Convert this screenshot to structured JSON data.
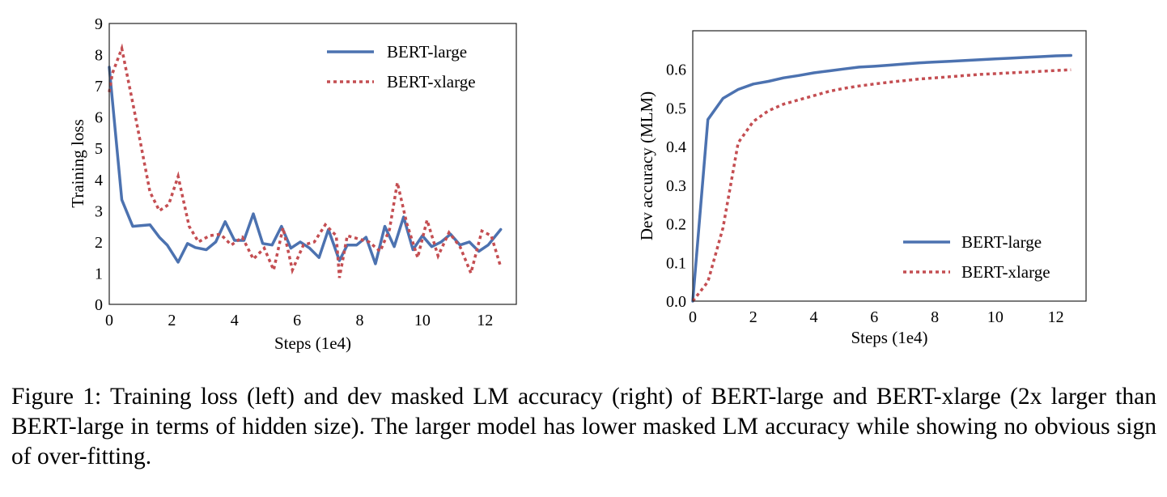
{
  "chart_data": [
    {
      "type": "line",
      "xlabel": "Steps (1e4)",
      "ylabel": "Training loss",
      "xlim": [
        0,
        13
      ],
      "ylim": [
        0,
        9
      ],
      "xticks": [
        0,
        2,
        4,
        6,
        8,
        10,
        12
      ],
      "xtick_labels": [
        "0",
        "2",
        "4",
        "6",
        "8",
        "10",
        "12"
      ],
      "yticks": [
        0,
        1,
        2,
        3,
        4,
        5,
        6,
        7,
        8,
        9
      ],
      "ytick_labels": [
        "0",
        "1",
        "2",
        "3",
        "4",
        "5",
        "6",
        "7",
        "8",
        "9"
      ],
      "grid": false,
      "legend": "top-right",
      "series": [
        {
          "name": "BERT-large",
          "color": "#4c72b0",
          "style": "solid",
          "x": [
            0,
            0.4,
            0.75,
            1.0,
            1.3,
            1.6,
            1.85,
            2.2,
            2.5,
            2.75,
            3.1,
            3.4,
            3.7,
            4.0,
            4.3,
            4.6,
            4.9,
            5.2,
            5.5,
            5.8,
            6.1,
            6.4,
            6.7,
            7.0,
            7.35,
            7.6,
            7.9,
            8.2,
            8.5,
            8.8,
            9.1,
            9.4,
            9.7,
            10.0,
            10.3,
            10.6,
            10.9,
            11.2,
            11.5,
            11.8,
            12.1,
            12.5
          ],
          "y": [
            7.6,
            3.35,
            2.5,
            2.52,
            2.55,
            2.15,
            1.9,
            1.35,
            1.95,
            1.82,
            1.75,
            2.0,
            2.65,
            2.05,
            2.05,
            2.9,
            1.95,
            1.9,
            2.5,
            1.8,
            2.0,
            1.8,
            1.5,
            2.4,
            1.4,
            1.9,
            1.9,
            2.15,
            1.3,
            2.5,
            1.85,
            2.8,
            1.75,
            2.2,
            1.85,
            2.0,
            2.25,
            1.9,
            2.0,
            1.7,
            1.9,
            2.4
          ]
        },
        {
          "name": "BERT-xlarge",
          "color": "#c44e52",
          "style": "dotted",
          "x": [
            0,
            0.1,
            0.4,
            0.8,
            1.3,
            1.6,
            1.9,
            2.2,
            2.55,
            2.85,
            3.2,
            3.55,
            3.9,
            4.25,
            4.6,
            4.95,
            5.25,
            5.55,
            5.85,
            6.2,
            6.55,
            6.9,
            7.25,
            7.35,
            7.6,
            7.95,
            8.3,
            8.65,
            8.95,
            9.2,
            9.5,
            9.85,
            10.15,
            10.5,
            10.85,
            11.2,
            11.55,
            11.9,
            12.2,
            12.5
          ],
          "y": [
            6.8,
            7.4,
            8.2,
            6.2,
            3.6,
            3.0,
            3.2,
            4.1,
            2.5,
            2.0,
            2.2,
            2.25,
            1.9,
            2.15,
            1.45,
            1.8,
            1.1,
            2.45,
            1.1,
            1.9,
            2.0,
            2.55,
            2.2,
            0.85,
            2.2,
            2.1,
            2.0,
            1.7,
            2.4,
            3.9,
            2.6,
            1.5,
            2.7,
            1.55,
            2.3,
            1.85,
            1.0,
            2.35,
            2.2,
            1.2
          ]
        }
      ]
    },
    {
      "type": "line",
      "xlabel": "Steps (1e4)",
      "ylabel": "Dev accuracy (MLM)",
      "xlim": [
        0,
        13
      ],
      "ylim": [
        0,
        0.7
      ],
      "xticks": [
        0,
        2,
        4,
        6,
        8,
        10,
        12
      ],
      "xtick_labels": [
        "0",
        "2",
        "4",
        "6",
        "8",
        "10",
        "12"
      ],
      "yticks": [
        0,
        0.1,
        0.2,
        0.3,
        0.4,
        0.5,
        0.6
      ],
      "ytick_labels": [
        "0.0",
        "0.1",
        "0.2",
        "0.3",
        "0.4",
        "0.5",
        "0.6"
      ],
      "grid": false,
      "legend": "bottom-right",
      "series": [
        {
          "name": "BERT-large",
          "color": "#4c72b0",
          "style": "solid",
          "x": [
            0,
            0.5,
            1.0,
            1.5,
            2.0,
            2.5,
            3.0,
            3.5,
            4.0,
            4.5,
            5.0,
            5.5,
            6.0,
            6.5,
            7.0,
            7.5,
            8.0,
            8.5,
            9.0,
            9.5,
            10.0,
            10.5,
            11.0,
            11.5,
            12.0,
            12.5
          ],
          "y": [
            0.0,
            0.47,
            0.525,
            0.548,
            0.562,
            0.569,
            0.578,
            0.584,
            0.591,
            0.596,
            0.601,
            0.606,
            0.608,
            0.611,
            0.614,
            0.617,
            0.619,
            0.621,
            0.623,
            0.625,
            0.627,
            0.629,
            0.631,
            0.633,
            0.635,
            0.636
          ]
        },
        {
          "name": "BERT-xlarge",
          "color": "#c44e52",
          "style": "dotted",
          "x": [
            0,
            0.5,
            1.0,
            1.5,
            2.0,
            2.5,
            3.0,
            3.5,
            4.0,
            4.5,
            5.0,
            5.5,
            6.0,
            6.5,
            7.0,
            7.5,
            8.0,
            8.5,
            9.0,
            9.5,
            10.0,
            10.5,
            11.0,
            11.5,
            12.0,
            12.5
          ],
          "y": [
            0.0,
            0.05,
            0.19,
            0.41,
            0.465,
            0.493,
            0.51,
            0.521,
            0.532,
            0.543,
            0.551,
            0.557,
            0.562,
            0.567,
            0.571,
            0.575,
            0.578,
            0.581,
            0.584,
            0.587,
            0.589,
            0.591,
            0.593,
            0.595,
            0.597,
            0.599
          ]
        }
      ]
    }
  ],
  "caption": "Figure 1: Training loss (left) and dev masked LM accuracy (right) of BERT-large and BERT-xlarge (2x larger than BERT-large in terms of hidden size). The larger model has lower masked LM accuracy while showing no obvious sign of over-fitting."
}
